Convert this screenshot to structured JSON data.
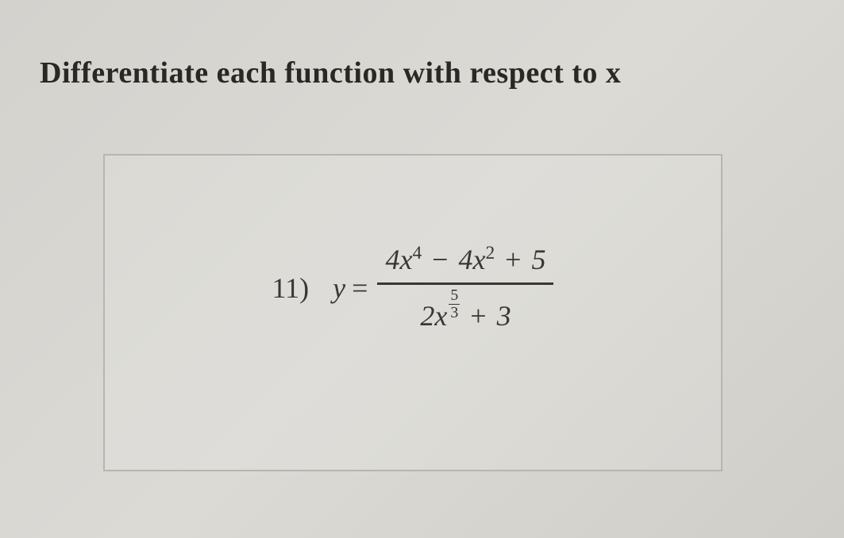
{
  "instruction": "Differentiate each function with respect to x",
  "problem": {
    "number": "11)",
    "lhs_var": "y",
    "equals": "=",
    "numerator": {
      "term1_coef": "4",
      "term1_var": "x",
      "term1_exp": "4",
      "op1": "−",
      "term2_coef": "4",
      "term2_var": "x",
      "term2_exp": "2",
      "op2": "+",
      "term3": "5"
    },
    "denominator": {
      "term1_coef": "2",
      "term1_var": "x",
      "term1_exp_num": "5",
      "term1_exp_den": "3",
      "op1": "+",
      "term2": "3"
    }
  },
  "colors": {
    "text": "#3a3732",
    "background": "#d7d5cf",
    "box_border": "#b8b5ae"
  },
  "typography": {
    "instruction_fontsize": 38,
    "equation_fontsize": 36,
    "font_family": "Georgia, serif"
  }
}
